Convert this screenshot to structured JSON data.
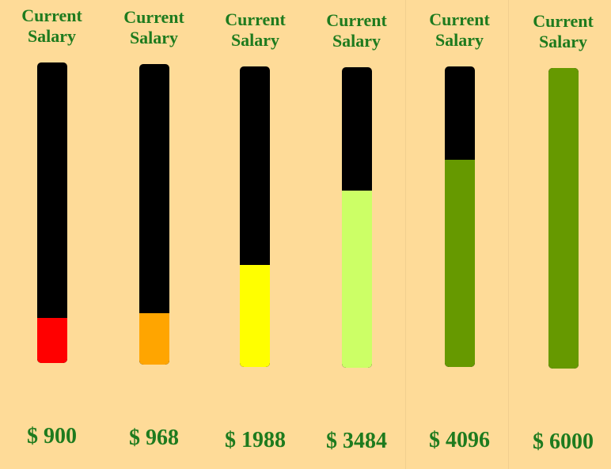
{
  "bars": [
    {
      "title": "Current\nSalary",
      "amount": "$ 900",
      "fill_fraction": 0.15,
      "fill_color": "#FF0000"
    },
    {
      "title": "Current\nSalary",
      "amount": "$ 968",
      "fill_fraction": 0.17,
      "fill_color": "#FFA500"
    },
    {
      "title": "Current\nSalary",
      "amount": "$ 1988",
      "fill_fraction": 0.34,
      "fill_color": "#FFFF00"
    },
    {
      "title": "Current\nSalary",
      "amount": "$ 3484",
      "fill_fraction": 0.59,
      "fill_color": "#CCFF66"
    },
    {
      "title": "Current\nSalary",
      "amount": "$ 4096",
      "fill_fraction": 0.69,
      "fill_color": "#669900"
    },
    {
      "title": "Current\nSalary",
      "amount": "$ 6000",
      "fill_fraction": 1.0,
      "fill_color": "#669900"
    }
  ]
}
